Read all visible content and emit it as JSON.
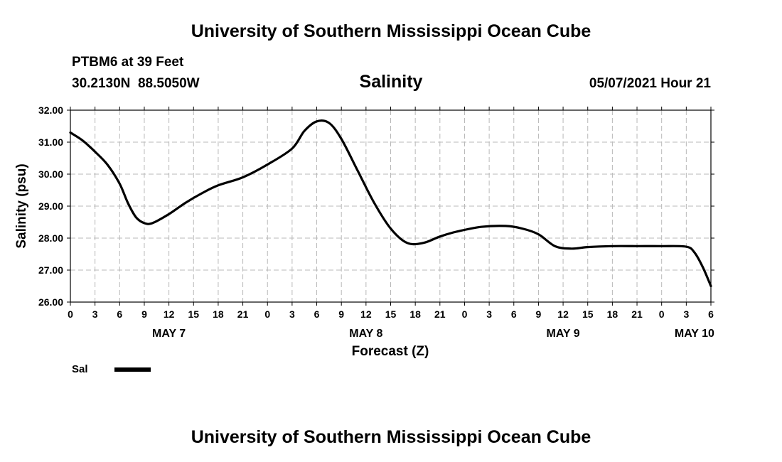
{
  "header": {
    "title_top": "University of Southern Mississippi Ocean Cube",
    "station": "PTBM6 at 39 Feet",
    "coords": "30.2130N  88.5050W",
    "parameter": "Salinity",
    "datetime": "05/07/2021 Hour 21",
    "title_bottom": "University of Southern Mississippi Ocean Cube"
  },
  "legend": {
    "label": "Sal",
    "color": "#000000"
  },
  "chart_data": {
    "type": "line",
    "title": "Salinity",
    "xlabel": "Forecast (Z)",
    "ylabel": "Salinity (psu)",
    "ylim": [
      26.0,
      32.0
    ],
    "yticks": [
      "26.00",
      "27.00",
      "28.00",
      "29.00",
      "30.00",
      "31.00",
      "32.00"
    ],
    "yvalues": [
      26,
      27,
      28,
      29,
      30,
      31,
      32
    ],
    "xlim": [
      0,
      78
    ],
    "xticks": [
      "0",
      "3",
      "6",
      "9",
      "12",
      "15",
      "18",
      "21",
      "0",
      "3",
      "6",
      "9",
      "12",
      "15",
      "18",
      "21",
      "0",
      "3",
      "6",
      "9",
      "12",
      "15",
      "18",
      "21",
      "0",
      "3",
      "6"
    ],
    "day_labels": [
      {
        "label": "MAY 7",
        "hour": 12
      },
      {
        "label": "MAY 8",
        "hour": 36
      },
      {
        "label": "MAY 9",
        "hour": 60
      },
      {
        "label": "MAY 10",
        "hour": 76
      }
    ],
    "grid": true,
    "series": [
      {
        "name": "Sal",
        "x": [
          0,
          1.5,
          3,
          4.5,
          6,
          7,
          8,
          9,
          10,
          12,
          14,
          16,
          18,
          21,
          24,
          27,
          28.5,
          30,
          31.5,
          33,
          35,
          37,
          39,
          41,
          43,
          45,
          47,
          50,
          53,
          55,
          57,
          59,
          61,
          63,
          66,
          69,
          72,
          75,
          76,
          77,
          78
        ],
        "values": [
          31.3,
          31.05,
          30.7,
          30.3,
          29.7,
          29.1,
          28.65,
          28.47,
          28.47,
          28.75,
          29.1,
          29.4,
          29.65,
          29.9,
          30.3,
          30.8,
          31.35,
          31.65,
          31.6,
          31.1,
          30.1,
          29.1,
          28.3,
          27.85,
          27.85,
          28.05,
          28.2,
          28.35,
          28.38,
          28.3,
          28.12,
          27.75,
          27.67,
          27.72,
          27.75,
          27.75,
          27.75,
          27.73,
          27.55,
          27.1,
          26.5
        ]
      }
    ]
  }
}
